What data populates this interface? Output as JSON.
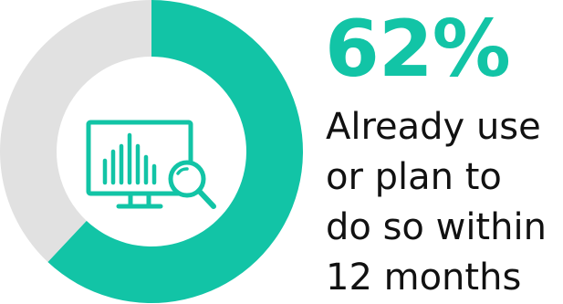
{
  "chart_data": {
    "type": "pie",
    "style": "donut",
    "slices": [
      {
        "value": 62,
        "color": "#12c4a6"
      },
      {
        "value": 38,
        "color": "#e1e1e1"
      }
    ],
    "headline": "62%",
    "caption_lines": [
      "Already use",
      "or plan to",
      "do so within",
      "12 months"
    ]
  },
  "colors": {
    "accent": "#12c4a6",
    "remainder": "#e1e1e1",
    "text": "#111111"
  },
  "icon": "monitor-analytics-search-icon"
}
